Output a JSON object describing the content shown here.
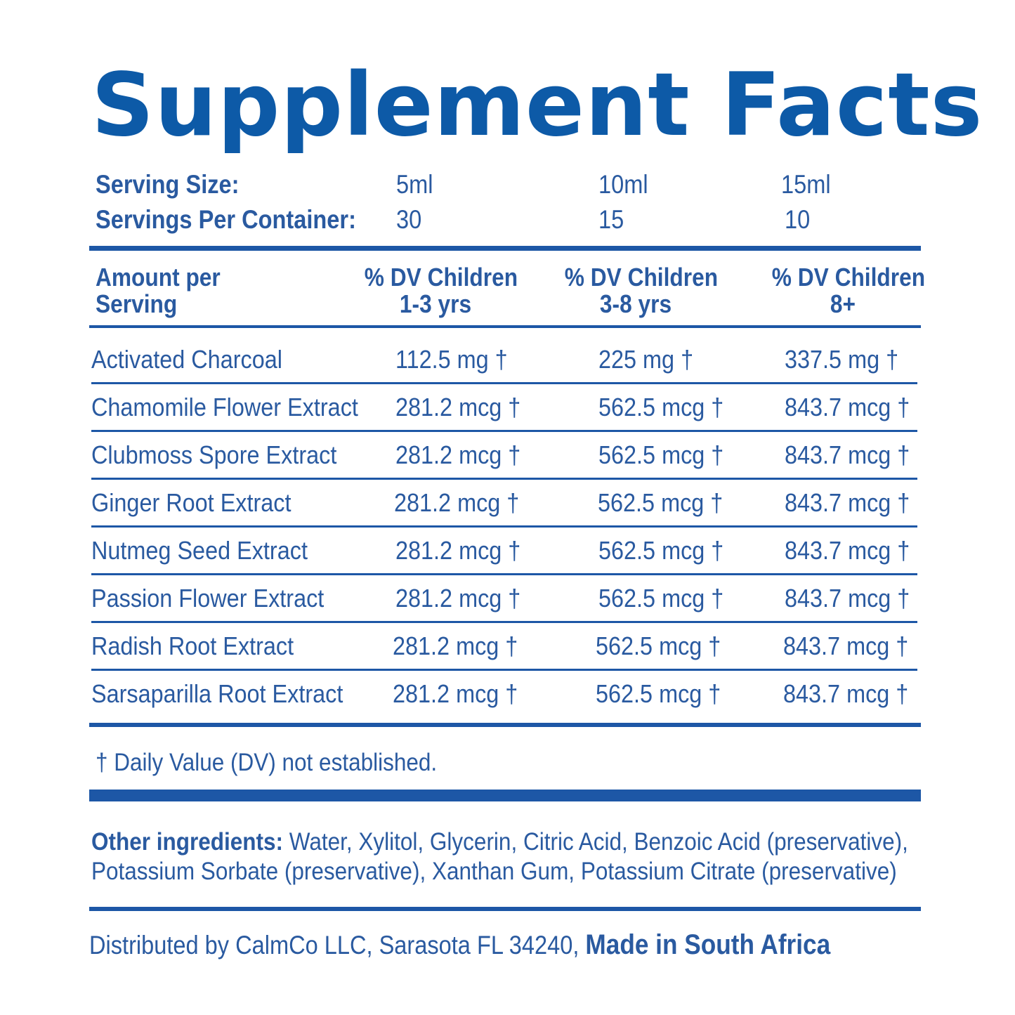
{
  "title": "Supplement Facts",
  "serving": {
    "size_label": "Serving Size:",
    "sizes": [
      "5ml",
      "10ml",
      "15ml"
    ],
    "per_container_label": "Servings Per Container:",
    "per_container": [
      "30",
      "15",
      "10"
    ]
  },
  "table": {
    "header": {
      "amount_line1": "Amount per",
      "amount_line2": "Serving",
      "columns": [
        {
          "line1": "% DV  Children",
          "line2": "1-3 yrs"
        },
        {
          "line1": "% DV  Children",
          "line2": "3-8 yrs"
        },
        {
          "line1": "% DV Children",
          "line2": "8+"
        }
      ]
    },
    "rows": [
      {
        "name": "Activated Charcoal",
        "values": [
          "112.5 mg †",
          "225 mg †",
          "337.5 mg †"
        ]
      },
      {
        "name": "Chamomile Flower Extract",
        "values": [
          "281.2 mcg †",
          "562.5 mcg †",
          "843.7 mcg †"
        ]
      },
      {
        "name": "Clubmoss Spore Extract",
        "values": [
          "281.2 mcg †",
          "562.5 mcg †",
          "843.7 mcg †"
        ]
      },
      {
        "name": "Ginger Root Extract",
        "values": [
          "281.2 mcg †",
          "562.5 mcg †",
          "843.7 mcg †"
        ]
      },
      {
        "name": "Nutmeg Seed Extract",
        "values": [
          "281.2 mcg †",
          "562.5 mcg †",
          "843.7 mcg †"
        ]
      },
      {
        "name": "Passion Flower Extract",
        "values": [
          "281.2 mcg †",
          "562.5 mcg †",
          "843.7 mcg †"
        ]
      },
      {
        "name": "Radish Root Extract",
        "values": [
          "281.2 mcg †",
          "562.5 mcg †",
          "843.7 mcg †"
        ]
      },
      {
        "name": "Sarsaparilla Root Extract",
        "values": [
          "281.2 mcg †",
          "562.5 mcg †",
          "843.7 mcg †"
        ]
      }
    ]
  },
  "footnote": "† Daily Value (DV) not established.",
  "other_ingredients": {
    "label": "Other ingredients:",
    "line1": " Water, Xylitol, Glycerin, Citric Acid, Benzoic Acid (preservative),",
    "line2": "Potassium Sorbate (preservative), Xanthan Gum, Potassium Citrate (preservative)"
  },
  "distribution": {
    "text": "Distributed by CalmCo LLC, Sarasota FL 34240, ",
    "made_in": "Made in South Africa"
  },
  "colors": {
    "primary_blue": "#1d57a6",
    "title_blue": "#0d5aa7"
  }
}
